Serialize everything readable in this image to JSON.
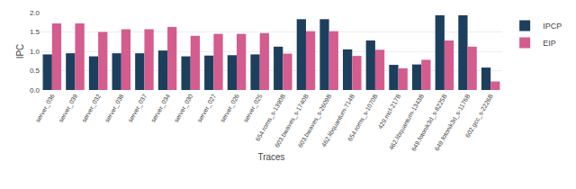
{
  "chart_data": {
    "type": "bar",
    "categories": [
      "server_036",
      "server_039",
      "server_032",
      "server_038",
      "server_037",
      "server_034",
      "server_030",
      "server_027",
      "server_026",
      "server_025",
      "654.roms_s-1390B",
      "603.bwaves_s-1740B",
      "603.bwaves_s-2609B",
      "462.libquantum-714B",
      "654.roms_s-1070B",
      "429.mcf-217B",
      "462.libquantum-1343B",
      "649.fotonik3d_s-8225B",
      "649.fotonik3d_s-1176B",
      "602.gcc_s-2226B"
    ],
    "series": [
      {
        "name": "IPCP",
        "color": "#1c3f5e",
        "values": [
          0.92,
          0.95,
          0.87,
          0.95,
          0.95,
          1.02,
          0.87,
          0.89,
          0.9,
          0.92,
          1.12,
          1.83,
          1.83,
          1.05,
          1.28,
          0.65,
          0.66,
          1.93,
          1.93,
          0.58
        ]
      },
      {
        "name": "EIP",
        "color": "#d45c8e",
        "values": [
          1.72,
          1.72,
          1.5,
          1.57,
          1.57,
          1.63,
          1.4,
          1.45,
          1.45,
          1.47,
          0.94,
          1.52,
          1.52,
          0.88,
          1.04,
          0.56,
          0.78,
          1.28,
          1.12,
          0.22
        ]
      }
    ],
    "xlabel": "Traces",
    "ylabel": "IPC",
    "ylim": [
      0.0,
      2.0
    ],
    "yticks": [
      {
        "value": 0.0,
        "label": "0.0"
      },
      {
        "value": 0.5,
        "label": "0.5"
      },
      {
        "value": 1.0,
        "label": "1.0"
      },
      {
        "value": 1.5,
        "label": "1.5"
      },
      {
        "value": 2.0,
        "label": "2.0"
      }
    ],
    "grid": true,
    "legend": "upper right"
  }
}
